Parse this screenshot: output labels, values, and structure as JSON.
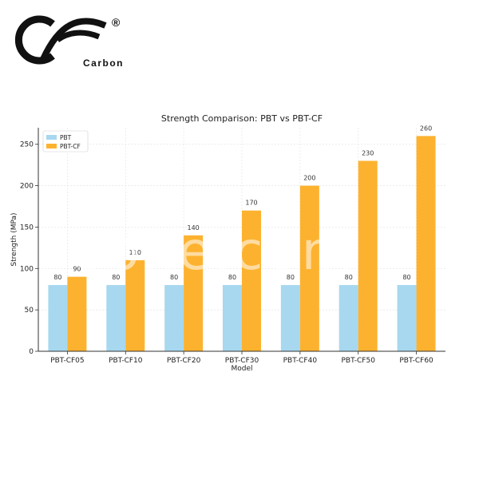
{
  "logo": {
    "letters": "CF",
    "word": "Carbon",
    "registered": "®"
  },
  "watermark": {
    "text": "oolle.com"
  },
  "chart_data": {
    "type": "bar",
    "title": "Strength Comparison: PBT vs PBT-CF",
    "xlabel": "Model",
    "ylabel": "Strength (MPa)",
    "ylim": [
      0,
      270
    ],
    "yticks": [
      0,
      50,
      100,
      150,
      200,
      250
    ],
    "grid": true,
    "legend_position": "top-left",
    "categories": [
      "PBT-CF05",
      "PBT-CF10",
      "PBT-CF20",
      "PBT-CF30",
      "PBT-CF40",
      "PBT-CF50",
      "PBT-CF60"
    ],
    "series": [
      {
        "name": "PBT",
        "color": "#a7d8ef",
        "values": [
          80,
          80,
          80,
          80,
          80,
          80,
          80
        ]
      },
      {
        "name": "PBT-CF",
        "color": "#fdb22f",
        "values": [
          90,
          110,
          140,
          170,
          200,
          230,
          260
        ]
      }
    ]
  }
}
